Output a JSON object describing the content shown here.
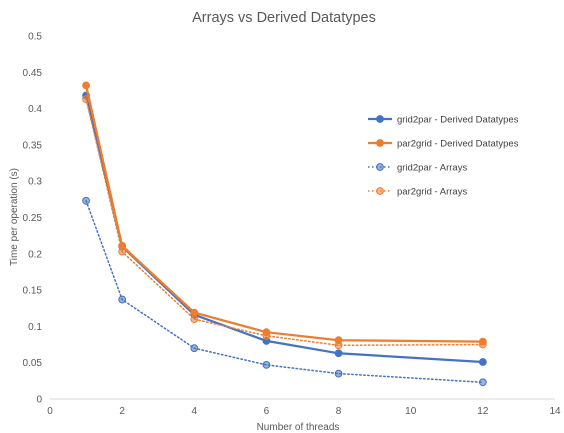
{
  "chart_data": {
    "type": "scatter",
    "title": "Arrays vs Derived Datatypes",
    "xlabel": "Number of threads",
    "ylabel": "Time per operation (s)",
    "xlim": [
      0,
      14
    ],
    "ylim": [
      0,
      0.5
    ],
    "x_ticks": [
      "0",
      "2",
      "4",
      "6",
      "8",
      "10",
      "12",
      "14"
    ],
    "y_ticks": [
      "0",
      "0.05",
      "0.1",
      "0.15",
      "0.2",
      "0.25",
      "0.3",
      "0.35",
      "0.4",
      "0.45",
      "0.5"
    ],
    "grid": false,
    "legend_position": "right",
    "series": [
      {
        "name": "grid2par - Derived Datatypes",
        "color": "#4472C4",
        "line_style": "solid",
        "x": [
          1,
          2,
          4,
          6,
          8,
          12
        ],
        "y": [
          0.418,
          0.21,
          0.116,
          0.08,
          0.063,
          0.051
        ]
      },
      {
        "name": "par2grid - Derived Datatypes",
        "color": "#ED7D31",
        "line_style": "solid",
        "x": [
          1,
          2,
          4,
          6,
          8,
          12
        ],
        "y": [
          0.432,
          0.211,
          0.119,
          0.092,
          0.081,
          0.079
        ]
      },
      {
        "name": "grid2par - Arrays",
        "color": "#4472C4",
        "line_style": "dotted",
        "x": [
          1,
          2,
          4,
          6,
          8,
          12
        ],
        "y": [
          0.273,
          0.137,
          0.07,
          0.047,
          0.035,
          0.023
        ]
      },
      {
        "name": "par2grid - Arrays",
        "color": "#ED7D31",
        "line_style": "dotted",
        "x": [
          1,
          2,
          4,
          6,
          8,
          12
        ],
        "y": [
          0.413,
          0.203,
          0.11,
          0.087,
          0.074,
          0.075
        ]
      }
    ]
  }
}
